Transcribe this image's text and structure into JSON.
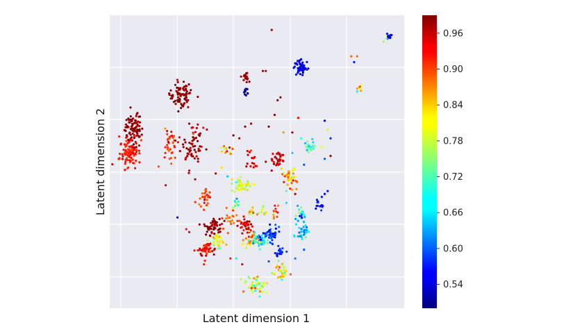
{
  "chart_data": {
    "type": "scatter",
    "xlabel": "Latent dimension 1",
    "ylabel": "Latent dimension 2",
    "xlim": [
      0,
      100
    ],
    "ylim": [
      0,
      100
    ],
    "grid": true,
    "colorbar": {
      "colormap": "jet",
      "range": [
        0.5,
        0.99
      ],
      "ticks": [
        "0.54",
        "0.60",
        "0.66",
        "0.72",
        "0.78",
        "0.84",
        "0.90",
        "0.96"
      ],
      "tick_values": [
        0.54,
        0.6,
        0.66,
        0.72,
        0.78,
        0.84,
        0.9,
        0.96
      ]
    },
    "clusters": [
      {
        "x": 8,
        "y": 61,
        "sx": 1.5,
        "sy": 3.0,
        "n": 90,
        "v": 0.98,
        "vs": 0.01
      },
      {
        "x": 7,
        "y": 53,
        "sx": 1.8,
        "sy": 2.5,
        "n": 100,
        "v": 0.92,
        "vs": 0.015
      },
      {
        "x": 24,
        "y": 73,
        "sx": 1.8,
        "sy": 2.2,
        "n": 80,
        "v": 0.98,
        "vs": 0.01
      },
      {
        "x": 20,
        "y": 56,
        "sx": 1.5,
        "sy": 3.0,
        "n": 35,
        "v": 0.91,
        "vs": 0.02
      },
      {
        "x": 28,
        "y": 55,
        "sx": 2.0,
        "sy": 2.2,
        "n": 45,
        "v": 0.98,
        "vs": 0.015
      },
      {
        "x": 46,
        "y": 79,
        "sx": 0.6,
        "sy": 1.0,
        "n": 18,
        "v": 0.97,
        "vs": 0.01
      },
      {
        "x": 46,
        "y": 74,
        "sx": 0.5,
        "sy": 0.6,
        "n": 10,
        "v": 0.52,
        "vs": 0.01
      },
      {
        "x": 65,
        "y": 82,
        "sx": 1.2,
        "sy": 1.4,
        "n": 55,
        "v": 0.55,
        "vs": 0.015
      },
      {
        "x": 95,
        "y": 93,
        "sx": 0.6,
        "sy": 0.6,
        "n": 15,
        "v": 0.55,
        "vs": 0.02
      },
      {
        "x": 32,
        "y": 38,
        "sx": 1.2,
        "sy": 1.5,
        "n": 25,
        "v": 0.9,
        "vs": 0.02
      },
      {
        "x": 45,
        "y": 42,
        "sx": 1.8,
        "sy": 1.2,
        "n": 45,
        "v": 0.77,
        "vs": 0.03
      },
      {
        "x": 57,
        "y": 51,
        "sx": 1.0,
        "sy": 1.2,
        "n": 30,
        "v": 0.95,
        "vs": 0.015
      },
      {
        "x": 61,
        "y": 45,
        "sx": 1.2,
        "sy": 2.0,
        "n": 40,
        "v": 0.84,
        "vs": 0.05
      },
      {
        "x": 68,
        "y": 55,
        "sx": 1.0,
        "sy": 1.2,
        "n": 20,
        "v": 0.72,
        "vs": 0.06
      },
      {
        "x": 35,
        "y": 28,
        "sx": 1.5,
        "sy": 1.5,
        "n": 55,
        "v": 0.98,
        "vs": 0.015
      },
      {
        "x": 33,
        "y": 20,
        "sx": 1.5,
        "sy": 1.2,
        "n": 45,
        "v": 0.93,
        "vs": 0.02
      },
      {
        "x": 37,
        "y": 23,
        "sx": 1.0,
        "sy": 1.2,
        "n": 25,
        "v": 0.8,
        "vs": 0.03
      },
      {
        "x": 46,
        "y": 28,
        "sx": 1.2,
        "sy": 1.5,
        "n": 35,
        "v": 0.95,
        "vs": 0.02
      },
      {
        "x": 48,
        "y": 23,
        "sx": 1.2,
        "sy": 1.2,
        "n": 30,
        "v": 0.83,
        "vs": 0.04
      },
      {
        "x": 51,
        "y": 23,
        "sx": 1.5,
        "sy": 1.2,
        "n": 45,
        "v": 0.68,
        "vs": 0.04
      },
      {
        "x": 55,
        "y": 25,
        "sx": 1.5,
        "sy": 1.2,
        "n": 45,
        "v": 0.58,
        "vs": 0.03
      },
      {
        "x": 58,
        "y": 19,
        "sx": 0.8,
        "sy": 1.0,
        "n": 20,
        "v": 0.58,
        "vs": 0.02
      },
      {
        "x": 65,
        "y": 26,
        "sx": 1.0,
        "sy": 1.2,
        "n": 30,
        "v": 0.65,
        "vs": 0.03
      },
      {
        "x": 50,
        "y": 8,
        "sx": 1.8,
        "sy": 1.5,
        "n": 50,
        "v": 0.78,
        "vs": 0.06
      },
      {
        "x": 58,
        "y": 12,
        "sx": 1.2,
        "sy": 1.5,
        "n": 35,
        "v": 0.79,
        "vs": 0.05
      },
      {
        "x": 52,
        "y": 33,
        "sx": 1.0,
        "sy": 1.0,
        "n": 12,
        "v": 0.76,
        "vs": 0.04
      },
      {
        "x": 56,
        "y": 33,
        "sx": 0.6,
        "sy": 1.0,
        "n": 10,
        "v": 0.88,
        "vs": 0.03
      },
      {
        "x": 71,
        "y": 36,
        "sx": 0.8,
        "sy": 1.0,
        "n": 12,
        "v": 0.56,
        "vs": 0.02
      },
      {
        "x": 41,
        "y": 30,
        "sx": 1.5,
        "sy": 2.0,
        "n": 20,
        "v": 0.88,
        "vs": 0.03
      },
      {
        "x": 30,
        "y": 60,
        "sx": 1.2,
        "sy": 1.2,
        "n": 15,
        "v": 0.96,
        "vs": 0.02
      },
      {
        "x": 85,
        "y": 75,
        "sx": 0.3,
        "sy": 0.5,
        "n": 5,
        "v": 0.86,
        "vs": 0.03
      },
      {
        "x": 65,
        "y": 32,
        "sx": 1.2,
        "sy": 1.5,
        "n": 20,
        "v": 0.66,
        "vs": 0.05
      },
      {
        "x": 40,
        "y": 54,
        "sx": 1.2,
        "sy": 1.5,
        "n": 12,
        "v": 0.88,
        "vs": 0.04
      },
      {
        "x": 48,
        "y": 51,
        "sx": 1.5,
        "sy": 2.5,
        "n": 15,
        "v": 0.94,
        "vs": 0.02
      },
      {
        "x": 43,
        "y": 36,
        "sx": 1.0,
        "sy": 1.0,
        "n": 10,
        "v": 0.72,
        "vs": 0.05
      },
      {
        "x": 48,
        "y": 33,
        "sx": 0.8,
        "sy": 0.8,
        "n": 10,
        "v": 0.83,
        "vs": 0.04
      }
    ],
    "scatter_points": [
      {
        "x": 55,
        "y": 95,
        "v": 0.98
      },
      {
        "x": 53,
        "y": 81,
        "v": 0.97
      },
      {
        "x": 52,
        "y": 81,
        "v": 0.97
      },
      {
        "x": 82,
        "y": 86,
        "v": 0.88
      },
      {
        "x": 84,
        "y": 86,
        "v": 0.88
      },
      {
        "x": 83,
        "y": 84,
        "v": 0.57
      },
      {
        "x": 93,
        "y": 91,
        "v": 0.75
      },
      {
        "x": 94,
        "y": 92,
        "v": 0.74
      },
      {
        "x": 84,
        "y": 75,
        "v": 0.85
      },
      {
        "x": 84,
        "y": 74,
        "v": 0.68
      },
      {
        "x": 73,
        "y": 64,
        "v": 0.55
      },
      {
        "x": 74,
        "y": 61,
        "v": 0.78
      },
      {
        "x": 75,
        "y": 58,
        "v": 0.58
      },
      {
        "x": 72,
        "y": 55,
        "v": 0.8
      },
      {
        "x": 75,
        "y": 52,
        "v": 0.98
      },
      {
        "x": 73,
        "y": 51,
        "v": 0.6
      },
      {
        "x": 74,
        "y": 40,
        "v": 0.57
      },
      {
        "x": 73,
        "y": 39,
        "v": 0.56
      },
      {
        "x": 72,
        "y": 38,
        "v": 0.57
      },
      {
        "x": 70,
        "y": 34,
        "v": 0.56
      },
      {
        "x": 23,
        "y": 31,
        "v": 0.53
      },
      {
        "x": 26,
        "y": 27,
        "v": 0.92
      },
      {
        "x": 27,
        "y": 26,
        "v": 0.95
      },
      {
        "x": 19,
        "y": 42,
        "v": 0.96
      },
      {
        "x": 57,
        "y": 71,
        "v": 0.98
      },
      {
        "x": 58,
        "y": 72,
        "v": 0.98
      },
      {
        "x": 56,
        "y": 66,
        "v": 0.98
      },
      {
        "x": 64,
        "y": 65,
        "v": 0.93
      },
      {
        "x": 62,
        "y": 60,
        "v": 0.98
      },
      {
        "x": 46,
        "y": 62,
        "v": 0.98
      },
      {
        "x": 48,
        "y": 63,
        "v": 0.98
      },
      {
        "x": 54,
        "y": 62,
        "v": 0.98
      },
      {
        "x": 59,
        "y": 60,
        "v": 0.86
      },
      {
        "x": 62,
        "y": 53,
        "v": 0.66
      },
      {
        "x": 65,
        "y": 58,
        "v": 0.7
      },
      {
        "x": 66,
        "y": 49,
        "v": 0.6
      },
      {
        "x": 40,
        "y": 45,
        "v": 0.66
      },
      {
        "x": 38,
        "y": 48,
        "v": 0.82
      },
      {
        "x": 36,
        "y": 46,
        "v": 0.96
      },
      {
        "x": 27,
        "y": 47,
        "v": 0.95
      },
      {
        "x": 29,
        "y": 44,
        "v": 0.97
      },
      {
        "x": 60,
        "y": 40,
        "v": 0.72
      },
      {
        "x": 63,
        "y": 39,
        "v": 0.97
      },
      {
        "x": 60,
        "y": 36,
        "v": 0.67
      },
      {
        "x": 66,
        "y": 20,
        "v": 0.6
      },
      {
        "x": 63,
        "y": 17,
        "v": 0.62
      },
      {
        "x": 45,
        "y": 15,
        "v": 0.95
      },
      {
        "x": 43,
        "y": 17,
        "v": 0.68
      },
      {
        "x": 41,
        "y": 17,
        "v": 0.92
      },
      {
        "x": 32,
        "y": 15,
        "v": 0.92
      },
      {
        "x": 54,
        "y": 16,
        "v": 0.6
      },
      {
        "x": 27,
        "y": 63,
        "v": 0.97
      },
      {
        "x": 33,
        "y": 61,
        "v": 0.96
      },
      {
        "x": 42,
        "y": 59,
        "v": 0.98
      },
      {
        "x": 44,
        "y": 58,
        "v": 0.97
      },
      {
        "x": 53,
        "y": 50,
        "v": 0.97
      },
      {
        "x": 55,
        "y": 47,
        "v": 0.97
      }
    ]
  }
}
